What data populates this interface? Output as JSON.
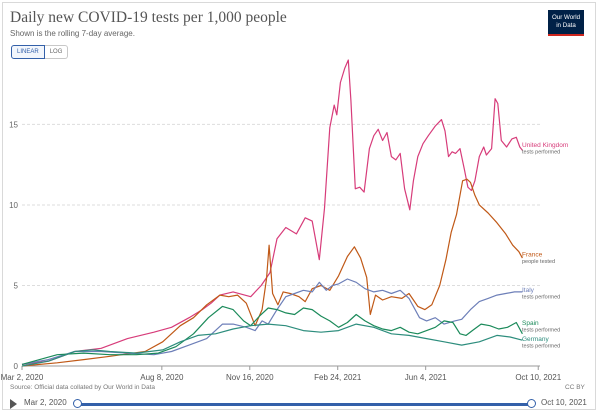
{
  "title": "Daily new COVID-19 tests per 1,000 people",
  "subtitle": "Shown is the rolling 7-day average.",
  "logo": {
    "line1": "Our World",
    "line2": "in Data"
  },
  "scale_toggle": {
    "linear_label": "LINEAR",
    "log_label": "LOG",
    "selected": "LINEAR"
  },
  "source": "Source: Official data collated by Our World in Data",
  "license": "CC BY",
  "timeline": {
    "start_label": "Mar 2, 2020",
    "end_label": "Oct 10, 2021",
    "icon": "play-icon"
  },
  "chart_data": {
    "type": "line",
    "x_unit": "days since Mar 2, 2020",
    "x_range": [
      0,
      589
    ],
    "ylim": [
      0,
      19
    ],
    "y_ticks": [
      0,
      5,
      10,
      15
    ],
    "x_ticks": [
      {
        "label": "Mar 2, 2020",
        "x": 0
      },
      {
        "label": "Aug 8, 2020",
        "x": 159
      },
      {
        "label": "Nov 16, 2020",
        "x": 259
      },
      {
        "label": "Feb 24, 2021",
        "x": 359
      },
      {
        "label": "Jun 4, 2021",
        "x": 459
      },
      {
        "label": "Oct 10, 2021",
        "x": 587
      }
    ],
    "grid": "horizontal",
    "series": [
      {
        "name": "United Kingdom",
        "sublabel": "tests performed",
        "color": "#d73c7a",
        "label_y": 13.6,
        "points": [
          [
            0,
            0.1
          ],
          [
            30,
            0.3
          ],
          [
            60,
            0.9
          ],
          [
            90,
            1.1
          ],
          [
            120,
            1.7
          ],
          [
            150,
            2.1
          ],
          [
            170,
            2.4
          ],
          [
            190,
            3.0
          ],
          [
            205,
            3.5
          ],
          [
            215,
            3.9
          ],
          [
            225,
            4.4
          ],
          [
            240,
            4.6
          ],
          [
            260,
            4.3
          ],
          [
            272,
            5.0
          ],
          [
            282,
            5.8
          ],
          [
            290,
            7.9
          ],
          [
            300,
            8.6
          ],
          [
            312,
            8.2
          ],
          [
            322,
            9.2
          ],
          [
            330,
            9.0
          ],
          [
            338,
            6.6
          ],
          [
            344,
            9.8
          ],
          [
            350,
            14.8
          ],
          [
            355,
            16.2
          ],
          [
            358,
            15.6
          ],
          [
            362,
            17.6
          ],
          [
            367,
            18.5
          ],
          [
            371,
            19.0
          ],
          [
            374,
            16.5
          ],
          [
            379,
            11.0
          ],
          [
            384,
            11.1
          ],
          [
            389,
            10.8
          ],
          [
            395,
            13.5
          ],
          [
            400,
            14.3
          ],
          [
            405,
            14.7
          ],
          [
            410,
            14.0
          ],
          [
            415,
            14.5
          ],
          [
            420,
            13.0
          ],
          [
            425,
            12.8
          ],
          [
            430,
            13.2
          ],
          [
            435,
            11.0
          ],
          [
            441,
            9.7
          ],
          [
            445,
            11.5
          ],
          [
            450,
            13.0
          ],
          [
            456,
            13.8
          ],
          [
            462,
            14.3
          ],
          [
            470,
            14.9
          ],
          [
            477,
            15.3
          ],
          [
            481,
            14.6
          ],
          [
            485,
            13.0
          ],
          [
            489,
            13.3
          ],
          [
            493,
            13.2
          ],
          [
            498,
            13.5
          ],
          [
            503,
            12.2
          ],
          [
            507,
            11.1
          ],
          [
            511,
            10.9
          ],
          [
            515,
            11.5
          ],
          [
            520,
            13.0
          ],
          [
            525,
            13.6
          ],
          [
            528,
            13.1
          ],
          [
            534,
            13.5
          ],
          [
            538,
            16.6
          ],
          [
            541,
            16.3
          ],
          [
            545,
            14.0
          ],
          [
            551,
            13.6
          ],
          [
            557,
            14.1
          ],
          [
            562,
            14.2
          ],
          [
            566,
            13.6
          ],
          [
            569,
            13.4
          ]
        ]
      },
      {
        "name": "France",
        "sublabel": "people tested",
        "color": "#c05917",
        "label_y": 6.8,
        "points": [
          [
            0,
            0
          ],
          [
            40,
            0.2
          ],
          [
            70,
            0.4
          ],
          [
            100,
            0.6
          ],
          [
            140,
            0.9
          ],
          [
            160,
            1.5
          ],
          [
            180,
            2.5
          ],
          [
            195,
            3.0
          ],
          [
            210,
            3.8
          ],
          [
            225,
            4.4
          ],
          [
            235,
            4.3
          ],
          [
            245,
            4.4
          ],
          [
            255,
            3.9
          ],
          [
            265,
            2.5
          ],
          [
            273,
            3.5
          ],
          [
            278,
            5.4
          ],
          [
            281,
            7.5
          ],
          [
            285,
            4.5
          ],
          [
            291,
            3.8
          ],
          [
            297,
            4.6
          ],
          [
            305,
            4.5
          ],
          [
            315,
            4.3
          ],
          [
            322,
            4.0
          ],
          [
            330,
            4.8
          ],
          [
            340,
            5.0
          ],
          [
            350,
            4.7
          ],
          [
            360,
            5.6
          ],
          [
            370,
            6.8
          ],
          [
            378,
            7.4
          ],
          [
            385,
            6.7
          ],
          [
            392,
            5.5
          ],
          [
            396,
            3.2
          ],
          [
            402,
            4.4
          ],
          [
            410,
            4.1
          ],
          [
            420,
            4.3
          ],
          [
            432,
            4.2
          ],
          [
            440,
            4.5
          ],
          [
            450,
            3.7
          ],
          [
            458,
            3.5
          ],
          [
            466,
            3.8
          ],
          [
            475,
            5.0
          ],
          [
            482,
            6.6
          ],
          [
            488,
            8.3
          ],
          [
            494,
            9.4
          ],
          [
            501,
            11.5
          ],
          [
            506,
            11.6
          ],
          [
            510,
            11.4
          ],
          [
            515,
            10.6
          ],
          [
            520,
            10.0
          ],
          [
            530,
            9.5
          ],
          [
            540,
            8.9
          ],
          [
            550,
            8.2
          ],
          [
            558,
            7.5
          ],
          [
            565,
            7.1
          ],
          [
            569,
            6.7
          ]
        ]
      },
      {
        "name": "Italy",
        "sublabel": "tests performed",
        "color": "#6d7fb8",
        "label_y": 4.6,
        "points": [
          [
            0,
            0.1
          ],
          [
            30,
            0.4
          ],
          [
            60,
            0.9
          ],
          [
            90,
            0.9
          ],
          [
            120,
            0.8
          ],
          [
            150,
            0.7
          ],
          [
            170,
            0.9
          ],
          [
            190,
            1.3
          ],
          [
            210,
            1.7
          ],
          [
            228,
            2.6
          ],
          [
            240,
            2.6
          ],
          [
            255,
            2.4
          ],
          [
            265,
            2.2
          ],
          [
            273,
            2.8
          ],
          [
            280,
            2.6
          ],
          [
            290,
            3.5
          ],
          [
            300,
            4.3
          ],
          [
            310,
            4.5
          ],
          [
            320,
            4.7
          ],
          [
            330,
            4.6
          ],
          [
            338,
            5.2
          ],
          [
            346,
            4.7
          ],
          [
            353,
            5.0
          ],
          [
            360,
            5.1
          ],
          [
            370,
            5.4
          ],
          [
            380,
            5.2
          ],
          [
            390,
            4.8
          ],
          [
            400,
            4.6
          ],
          [
            410,
            4.7
          ],
          [
            420,
            4.5
          ],
          [
            430,
            4.7
          ],
          [
            440,
            4.2
          ],
          [
            452,
            3.0
          ],
          [
            460,
            2.8
          ],
          [
            470,
            3.0
          ],
          [
            480,
            2.6
          ],
          [
            492,
            2.8
          ],
          [
            500,
            2.9
          ],
          [
            510,
            3.5
          ],
          [
            520,
            4.0
          ],
          [
            530,
            4.2
          ],
          [
            540,
            4.4
          ],
          [
            550,
            4.5
          ],
          [
            560,
            4.6
          ],
          [
            569,
            4.6
          ]
        ]
      },
      {
        "name": "Spain",
        "sublabel": "tests performed",
        "color": "#1b8a5a",
        "label_y": 2.55,
        "points": [
          [
            0,
            0.1
          ],
          [
            40,
            0.7
          ],
          [
            70,
            0.8
          ],
          [
            100,
            0.7
          ],
          [
            130,
            0.7
          ],
          [
            155,
            0.8
          ],
          [
            175,
            1.2
          ],
          [
            195,
            2.0
          ],
          [
            212,
            3.0
          ],
          [
            228,
            3.7
          ],
          [
            240,
            3.5
          ],
          [
            252,
            2.8
          ],
          [
            260,
            2.5
          ],
          [
            270,
            3.1
          ],
          [
            280,
            3.6
          ],
          [
            290,
            3.5
          ],
          [
            300,
            3.3
          ],
          [
            310,
            3.2
          ],
          [
            320,
            3.6
          ],
          [
            330,
            3.5
          ],
          [
            340,
            3.1
          ],
          [
            350,
            2.8
          ],
          [
            360,
            2.4
          ],
          [
            370,
            2.7
          ],
          [
            380,
            3.2
          ],
          [
            390,
            2.8
          ],
          [
            400,
            2.5
          ],
          [
            410,
            2.3
          ],
          [
            420,
            2.2
          ],
          [
            430,
            2.4
          ],
          [
            440,
            2.1
          ],
          [
            450,
            2.0
          ],
          [
            460,
            2.2
          ],
          [
            470,
            2.4
          ],
          [
            480,
            2.8
          ],
          [
            490,
            2.7
          ],
          [
            498,
            2.0
          ],
          [
            505,
            1.9
          ],
          [
            512,
            2.2
          ],
          [
            522,
            2.6
          ],
          [
            532,
            2.5
          ],
          [
            542,
            2.3
          ],
          [
            552,
            2.4
          ],
          [
            562,
            2.7
          ],
          [
            569,
            2.0
          ]
        ]
      },
      {
        "name": "Germany",
        "sublabel": "tests performed",
        "color": "#2d8d7d",
        "label_y": 1.55,
        "points": [
          [
            0,
            0
          ],
          [
            30,
            0.3
          ],
          [
            60,
            0.9
          ],
          [
            80,
            1.0
          ],
          [
            100,
            0.9
          ],
          [
            130,
            0.8
          ],
          [
            160,
            1.0
          ],
          [
            180,
            1.5
          ],
          [
            200,
            1.9
          ],
          [
            220,
            2.0
          ],
          [
            240,
            2.3
          ],
          [
            260,
            2.5
          ],
          [
            280,
            2.6
          ],
          [
            300,
            2.5
          ],
          [
            320,
            2.2
          ],
          [
            340,
            2.1
          ],
          [
            360,
            2.2
          ],
          [
            380,
            2.6
          ],
          [
            400,
            2.4
          ],
          [
            420,
            2.0
          ],
          [
            440,
            1.9
          ],
          [
            460,
            1.7
          ],
          [
            480,
            1.5
          ],
          [
            500,
            1.3
          ],
          [
            520,
            1.5
          ],
          [
            540,
            1.9
          ],
          [
            555,
            1.8
          ],
          [
            569,
            1.6
          ]
        ]
      }
    ]
  }
}
